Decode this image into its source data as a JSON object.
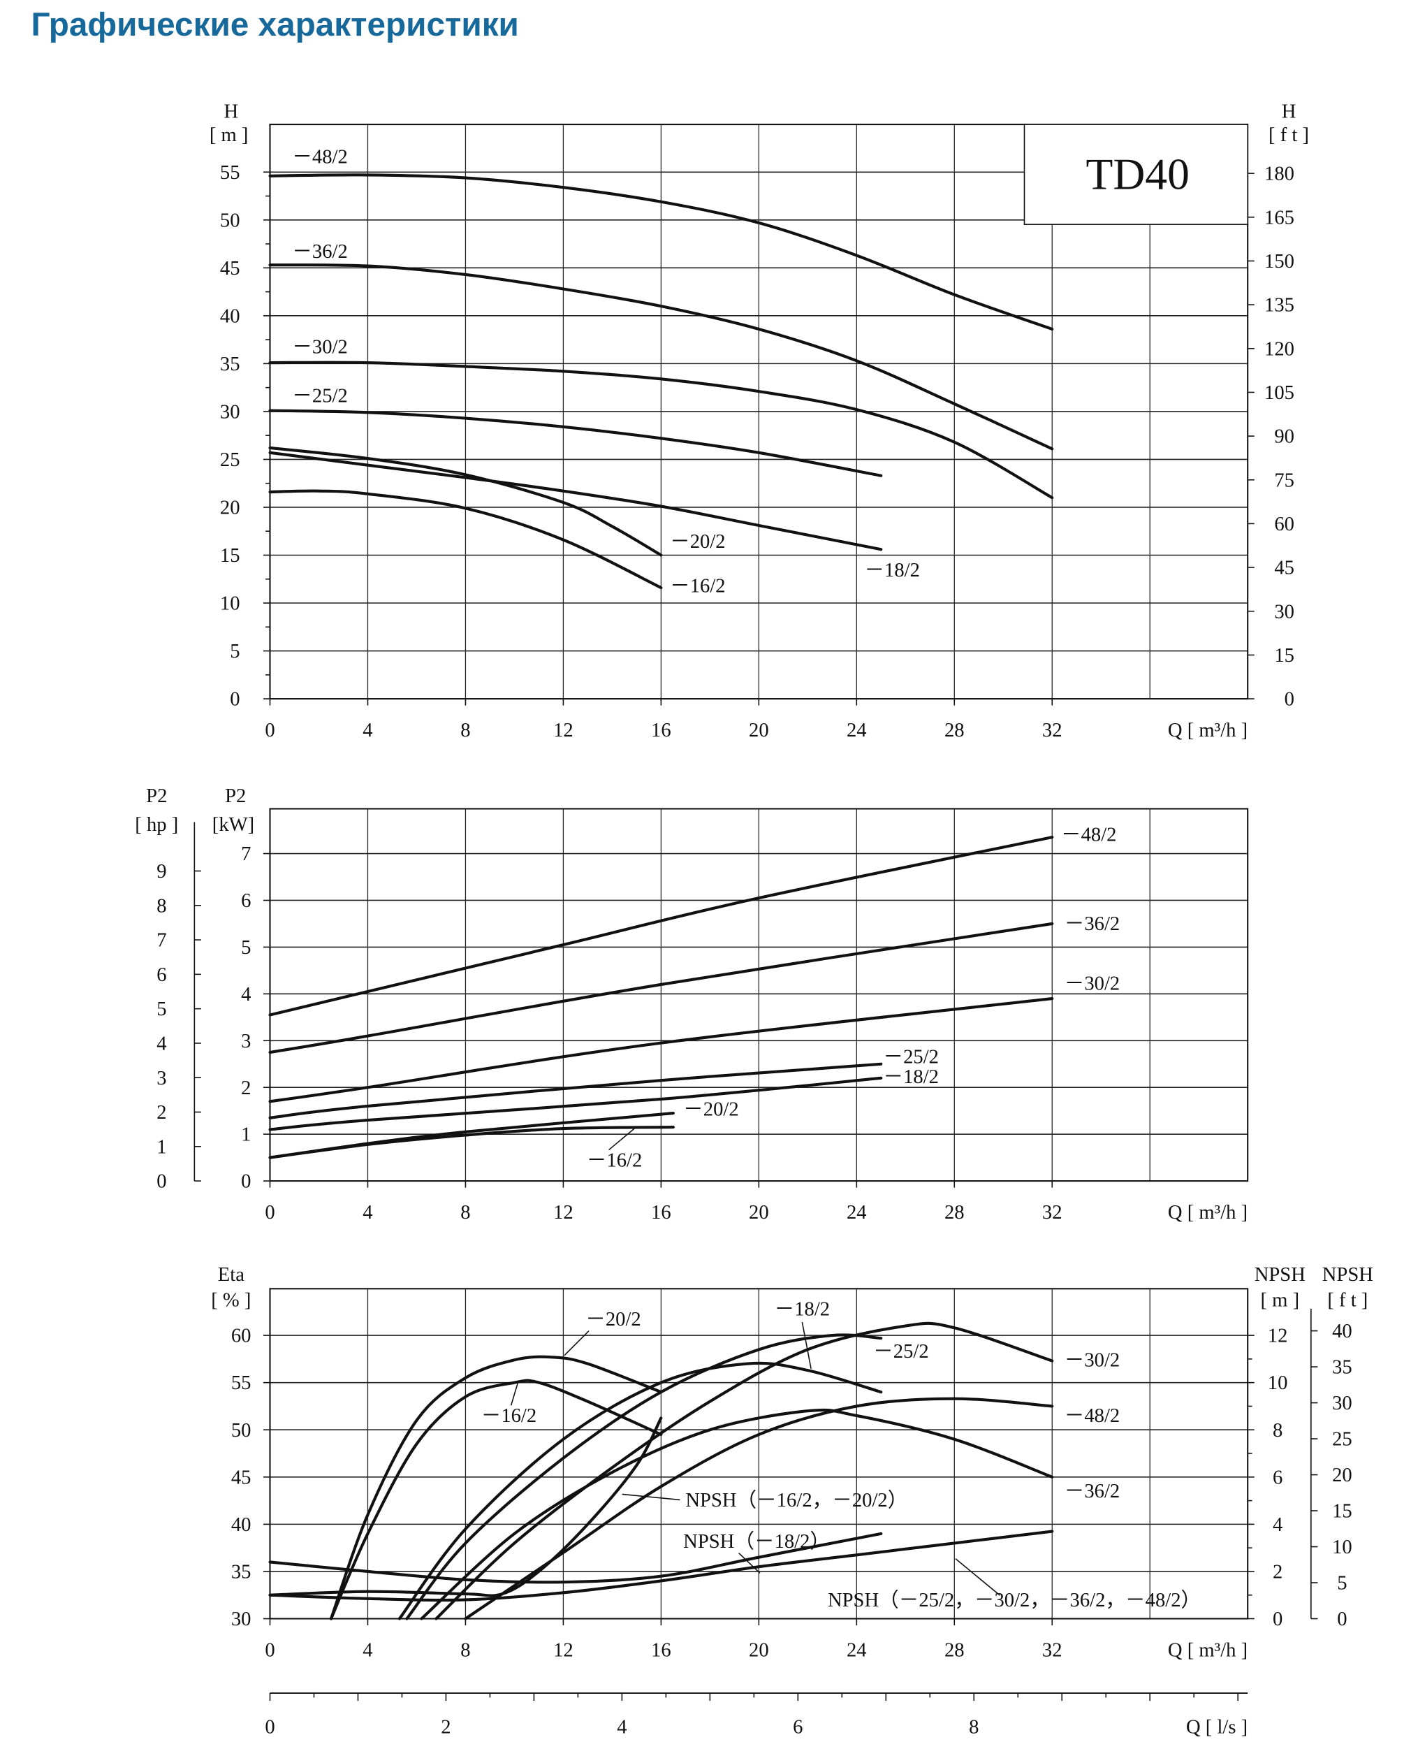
{
  "page_title": "Графические характеристики",
  "chart_data": [
    {
      "type": "line",
      "title": "TD40",
      "xlabel": "Q  [ m³/h ]",
      "ylabel_name": "H",
      "ylabel_unit": "[ m ]",
      "y2label_name": "H",
      "y2label_unit": "[ f t ]",
      "xlim": [
        0,
        40
      ],
      "ylim": [
        0,
        55
      ],
      "x_ticks": [
        "0",
        "4",
        "8",
        "12",
        "16",
        "20",
        "24",
        "28",
        "32"
      ],
      "y_ticks": [
        "0",
        "5",
        "10",
        "15",
        "20",
        "25",
        "30",
        "35",
        "40",
        "45",
        "50",
        "55"
      ],
      "y2_ticks": [
        "0",
        "15",
        "30",
        "45",
        "60",
        "75",
        "90",
        "105",
        "120",
        "135",
        "150",
        "165",
        "180"
      ],
      "grid": true,
      "series": [
        {
          "name": "-48/2",
          "label": "－48/2",
          "points": [
            [
              0,
              54.6
            ],
            [
              4,
              54.7
            ],
            [
              8,
              54.4
            ],
            [
              12,
              53.4
            ],
            [
              16,
              51.9
            ],
            [
              20,
              49.7
            ],
            [
              24,
              46.3
            ],
            [
              28,
              42.2
            ],
            [
              32,
              38.6
            ]
          ]
        },
        {
          "name": "-36/2",
          "label": "－36/2",
          "points": [
            [
              0,
              45.3
            ],
            [
              4,
              45.2
            ],
            [
              8,
              44.3
            ],
            [
              12,
              42.8
            ],
            [
              16,
              41.0
            ],
            [
              20,
              38.6
            ],
            [
              24,
              35.3
            ],
            [
              28,
              30.8
            ],
            [
              32,
              26.1
            ]
          ]
        },
        {
          "name": "-30/2",
          "label": "－30/2",
          "points": [
            [
              0,
              35.1
            ],
            [
              4,
              35.1
            ],
            [
              8,
              34.7
            ],
            [
              12,
              34.2
            ],
            [
              16,
              33.4
            ],
            [
              20,
              32.1
            ],
            [
              24,
              30.2
            ],
            [
              28,
              26.8
            ],
            [
              32,
              21.0
            ]
          ]
        },
        {
          "name": "-25/2",
          "label": "－25/2",
          "points": [
            [
              0,
              30.1
            ],
            [
              4,
              29.9
            ],
            [
              8,
              29.3
            ],
            [
              12,
              28.4
            ],
            [
              16,
              27.2
            ],
            [
              20,
              25.7
            ],
            [
              25,
              23.3
            ]
          ]
        },
        {
          "name": "-20/2",
          "label": "－20/2",
          "points": [
            [
              0,
              26.2
            ],
            [
              4,
              25.1
            ],
            [
              8,
              23.4
            ],
            [
              12,
              20.5
            ],
            [
              14,
              18.0
            ],
            [
              16,
              15.0
            ]
          ]
        },
        {
          "name": "-18/2",
          "label": "－18/2",
          "points": [
            [
              0,
              25.7
            ],
            [
              4,
              24.4
            ],
            [
              8,
              23.1
            ],
            [
              12,
              21.7
            ],
            [
              16,
              20.1
            ],
            [
              20,
              18.1
            ],
            [
              25,
              15.6
            ]
          ]
        },
        {
          "name": "-16/2",
          "label": "－16/2",
          "points": [
            [
              0,
              21.6
            ],
            [
              2,
              21.7
            ],
            [
              4,
              21.4
            ],
            [
              8,
              19.9
            ],
            [
              12,
              16.6
            ],
            [
              16,
              11.6
            ]
          ]
        }
      ]
    },
    {
      "type": "line",
      "xlabel": "Q  [ m³/h ]",
      "ylabel_name": "P2",
      "ylabel_unit": "[kW]",
      "y2label_name": "P2",
      "y2label_unit": "[ hp ]",
      "xlim": [
        0,
        40
      ],
      "ylim": [
        0,
        7.5
      ],
      "x_ticks": [
        "0",
        "4",
        "8",
        "12",
        "16",
        "20",
        "24",
        "28",
        "32"
      ],
      "y_ticks": [
        "0",
        "1",
        "2",
        "3",
        "4",
        "5",
        "6",
        "7"
      ],
      "y2_ticks": [
        "0",
        "1",
        "2",
        "3",
        "4",
        "5",
        "6",
        "7",
        "8",
        "9"
      ],
      "grid": true,
      "series": [
        {
          "name": "-48/2",
          "label": "－48/2",
          "points": [
            [
              0,
              3.55
            ],
            [
              4,
              4.05
            ],
            [
              12,
              5.05
            ],
            [
              20,
              6.05
            ],
            [
              32,
              7.35
            ]
          ]
        },
        {
          "name": "-36/2",
          "label": "－36/2",
          "points": [
            [
              0,
              2.75
            ],
            [
              4,
              3.1
            ],
            [
              16,
              4.2
            ],
            [
              32,
              5.5
            ]
          ]
        },
        {
          "name": "-30/2",
          "label": "－30/2",
          "points": [
            [
              0,
              1.7
            ],
            [
              4,
              2.0
            ],
            [
              16,
              2.95
            ],
            [
              32,
              3.9
            ]
          ]
        },
        {
          "name": "-25/2",
          "label": "－25/2",
          "points": [
            [
              0,
              1.35
            ],
            [
              4,
              1.6
            ],
            [
              16,
              2.15
            ],
            [
              25,
              2.5
            ]
          ]
        },
        {
          "name": "-18/2",
          "label": "－18/2",
          "points": [
            [
              0,
              1.1
            ],
            [
              4,
              1.3
            ],
            [
              16,
              1.75
            ],
            [
              25,
              2.2
            ]
          ]
        },
        {
          "name": "-20/2",
          "label": "－20/2",
          "points": [
            [
              0,
              0.5
            ],
            [
              4,
              0.8
            ],
            [
              8,
              1.05
            ],
            [
              16.5,
              1.45
            ]
          ]
        },
        {
          "name": "-16/2",
          "label": "－16/2",
          "points": [
            [
              0,
              0.5
            ],
            [
              4,
              0.78
            ],
            [
              8,
              0.98
            ],
            [
              12,
              1.12
            ],
            [
              16.5,
              1.15
            ]
          ]
        }
      ]
    },
    {
      "type": "line",
      "xlabel": "Q  [ m³/h ]",
      "x2label": "Q  [ l/s ]",
      "ylabel_name": "Eta",
      "ylabel_unit": "[ % ]",
      "y2label_name": "NPSH",
      "y2label_unit": "[ m ]",
      "y3label_name": "NPSH",
      "y3label_unit": "[ f t ]",
      "xlim": [
        0,
        40
      ],
      "ylim": [
        30,
        64.5
      ],
      "x_ticks": [
        "0",
        "4",
        "8",
        "12",
        "16",
        "20",
        "24",
        "28",
        "32"
      ],
      "x2_ticks": [
        "0",
        "2",
        "4",
        "6",
        "8"
      ],
      "y_ticks": [
        "30",
        "35",
        "40",
        "45",
        "50",
        "55",
        "60"
      ],
      "y2_ticks": [
        "0",
        "2",
        "4",
        "6",
        "8",
        "10",
        "12"
      ],
      "y3_ticks": [
        "0",
        "5",
        "10",
        "15",
        "20",
        "25",
        "30",
        "35",
        "40"
      ],
      "grid": true,
      "series": [
        {
          "name": "-20/2",
          "axis": "eta",
          "label": "－20/2",
          "points": [
            [
              2.5,
              30
            ],
            [
              4,
              41
            ],
            [
              6,
              51
            ],
            [
              8,
              55.5
            ],
            [
              10,
              57.4
            ],
            [
              11.5,
              57.7
            ],
            [
              13,
              57
            ],
            [
              16,
              54
            ]
          ]
        },
        {
          "name": "-16/2",
          "axis": "eta",
          "label": "－16/2",
          "points": [
            [
              2.5,
              30
            ],
            [
              4,
              39
            ],
            [
              6,
              48.5
            ],
            [
              8,
              53.5
            ],
            [
              10,
              55
            ],
            [
              11,
              55
            ],
            [
              13,
              53
            ],
            [
              16,
              49.5
            ]
          ]
        },
        {
          "name": "-18/2",
          "axis": "eta",
          "label": "－18/2",
          "points": [
            [
              5.3,
              30
            ],
            [
              8,
              39.5
            ],
            [
              12,
              49
            ],
            [
              16,
              55
            ],
            [
              19.5,
              57
            ],
            [
              22,
              56.3
            ],
            [
              25,
              54
            ]
          ]
        },
        {
          "name": "-25/2",
          "axis": "eta",
          "label": "－25/2",
          "points": [
            [
              5.6,
              30
            ],
            [
              8,
              38
            ],
            [
              12,
              47
            ],
            [
              16,
              54
            ],
            [
              20,
              58.5
            ],
            [
              23,
              60
            ],
            [
              25,
              59.7
            ]
          ]
        },
        {
          "name": "-30/2",
          "axis": "eta",
          "label": "－30/2",
          "points": [
            [
              6.8,
              30
            ],
            [
              10,
              38
            ],
            [
              14,
              46
            ],
            [
              18,
              53
            ],
            [
              22,
              58.5
            ],
            [
              26,
              61
            ],
            [
              28,
              60.8
            ],
            [
              32,
              57.3
            ]
          ]
        },
        {
          "name": "-48/2",
          "axis": "eta",
          "label": "－48/2",
          "points": [
            [
              8,
              30
            ],
            [
              12,
              37
            ],
            [
              16,
              44
            ],
            [
              20,
              49.5
            ],
            [
              24,
              52.5
            ],
            [
              28,
              53.3
            ],
            [
              32,
              52.5
            ]
          ]
        },
        {
          "name": "-36/2",
          "axis": "eta",
          "label": "－36/2",
          "points": [
            [
              6.2,
              30
            ],
            [
              10,
              39
            ],
            [
              14,
              45.5
            ],
            [
              18,
              50
            ],
            [
              22,
              52
            ],
            [
              24,
              51.5
            ],
            [
              28,
              49
            ],
            [
              32,
              45
            ]
          ]
        },
        {
          "name": "NPSH -16/2,-20/2",
          "axis": "npsh",
          "label": "NPSH（－16/2，－20/2）",
          "points": [
            [
              0,
              1.0
            ],
            [
              4,
              1.15
            ],
            [
              8,
              1.05
            ],
            [
              9.5,
              1.05
            ],
            [
              11,
              2.0
            ],
            [
              13,
              4.0
            ],
            [
              15,
              6.5
            ],
            [
              16,
              8.5
            ]
          ]
        },
        {
          "name": "NPSH -18/2",
          "axis": "npsh",
          "label": "NPSH（－18/2）",
          "points": [
            [
              0,
              2.4
            ],
            [
              4,
              2.0
            ],
            [
              8,
              1.65
            ],
            [
              12,
              1.55
            ],
            [
              16,
              1.8
            ],
            [
              20,
              2.6
            ],
            [
              25,
              3.6
            ]
          ]
        },
        {
          "name": "NPSH -25/2,-30/2,-36/2,-48/2",
          "axis": "npsh",
          "label": "NPSH（－25/2，－30/2，－36/2，－48/2）",
          "points": [
            [
              0,
              1.0
            ],
            [
              4,
              0.85
            ],
            [
              8,
              0.8
            ],
            [
              12,
              1.1
            ],
            [
              16,
              1.6
            ],
            [
              20,
              2.2
            ],
            [
              24,
              2.7
            ],
            [
              28,
              3.2
            ],
            [
              32,
              3.7
            ]
          ]
        }
      ]
    }
  ]
}
